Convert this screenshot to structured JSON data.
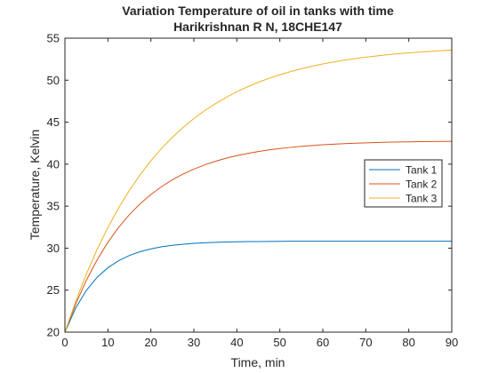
{
  "chart_data": {
    "type": "line",
    "title": [
      "Variation Temperature of oil in tanks with time",
      "Harikrishnan R N, 18CHE147"
    ],
    "xlabel": "Time, min",
    "ylabel": "Temperature, Kelvin",
    "xlim": [
      0,
      90
    ],
    "ylim": [
      20,
      55
    ],
    "xticks": [
      0,
      10,
      20,
      30,
      40,
      50,
      60,
      70,
      80,
      90
    ],
    "yticks": [
      20,
      25,
      30,
      35,
      40,
      45,
      50,
      55
    ],
    "grid": false,
    "legend_position": "right",
    "x": [
      0,
      2.5,
      5,
      7.5,
      10,
      12.5,
      15,
      17.5,
      20,
      22.5,
      25,
      27.5,
      30,
      32.5,
      35,
      37.5,
      40,
      42.5,
      45,
      47.5,
      50,
      52.5,
      55,
      57.5,
      60,
      62.5,
      65,
      67.5,
      70,
      72.5,
      75,
      77.5,
      80,
      82.5,
      85,
      87.5,
      90
    ],
    "series": [
      {
        "name": "Tank 1",
        "color": "#0072bd",
        "values": [
          20.0,
          22.87,
          24.98,
          26.53,
          27.67,
          28.51,
          29.13,
          29.58,
          29.91,
          30.16,
          30.34,
          30.47,
          30.57,
          30.64,
          30.69,
          30.73,
          30.76,
          30.78,
          30.79,
          30.8,
          30.81,
          30.82,
          30.82,
          30.82,
          30.83,
          30.83,
          30.83,
          30.83,
          30.83,
          30.83,
          30.83,
          30.83,
          30.83,
          30.83,
          30.83,
          30.83,
          30.83
        ]
      },
      {
        "name": "Tank 2",
        "color": "#d95319",
        "values": [
          20.0,
          23.34,
          26.19,
          28.62,
          30.7,
          32.48,
          33.99,
          35.28,
          36.39,
          37.33,
          38.14,
          38.83,
          39.41,
          39.91,
          40.34,
          40.71,
          41.02,
          41.28,
          41.51,
          41.7,
          41.86,
          42.0,
          42.12,
          42.22,
          42.31,
          42.38,
          42.44,
          42.5,
          42.54,
          42.58,
          42.61,
          42.64,
          42.66,
          42.68,
          42.7,
          42.71,
          42.72
        ]
      },
      {
        "name": "Tank 3",
        "color": "#edb120",
        "values": [
          20.0,
          23.66,
          26.94,
          29.86,
          32.47,
          34.8,
          36.88,
          38.74,
          40.4,
          41.88,
          43.2,
          44.38,
          45.43,
          46.37,
          47.2,
          47.95,
          48.62,
          49.21,
          49.75,
          50.22,
          50.64,
          51.02,
          51.36,
          51.66,
          51.93,
          52.17,
          52.38,
          52.57,
          52.74,
          52.89,
          53.03,
          53.15,
          53.25,
          53.35,
          53.43,
          53.51,
          53.58
        ]
      }
    ]
  }
}
